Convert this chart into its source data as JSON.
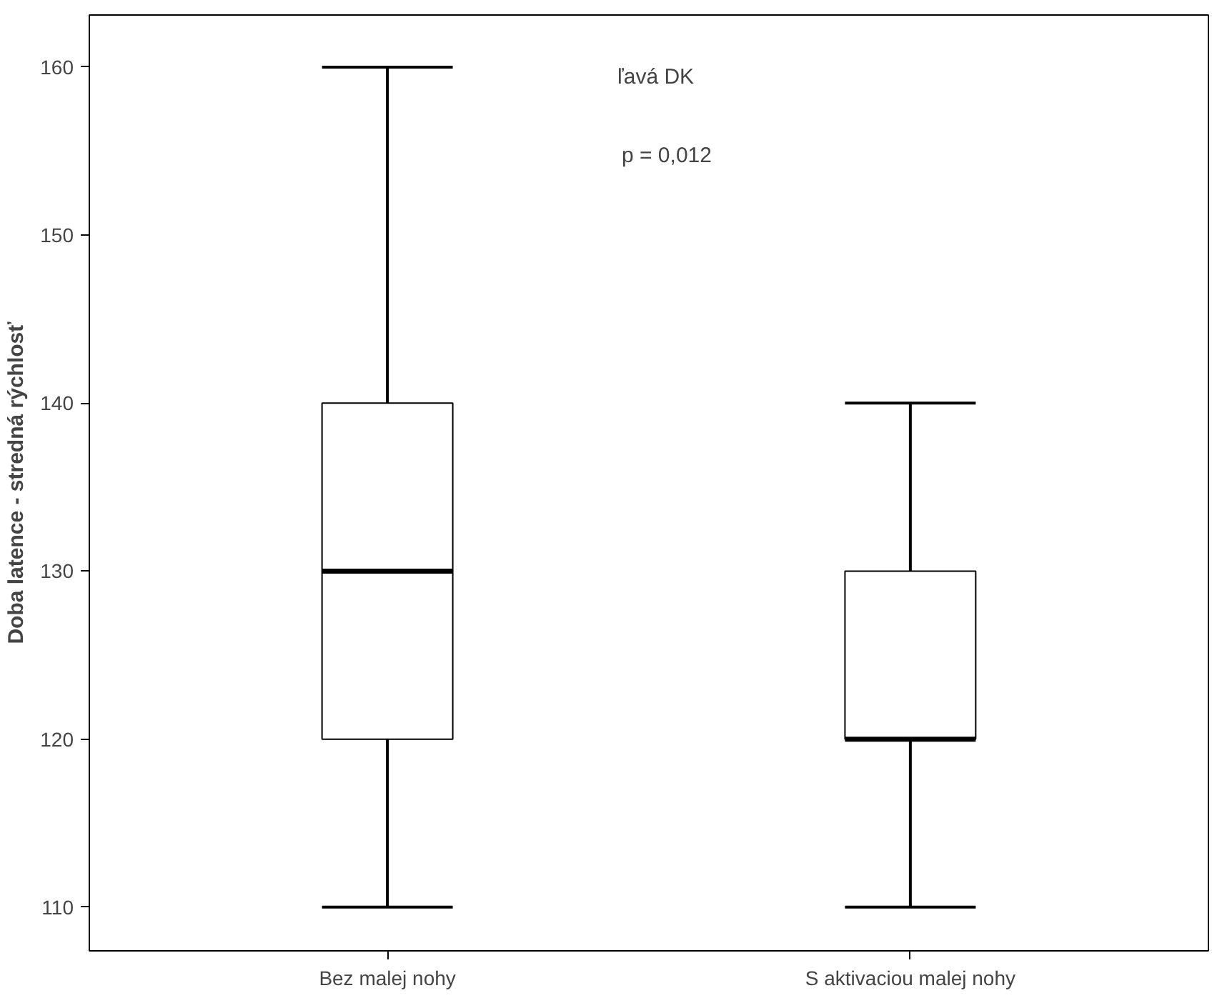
{
  "chart_data": {
    "type": "box",
    "ylabel": "Doba latence - stredná rýchlosť",
    "categories": [
      "Bez malej nohy",
      "S aktivaciou malej nohy"
    ],
    "boxes": [
      {
        "low": 110,
        "q1": 120,
        "median": 130,
        "q3": 140,
        "high": 160
      },
      {
        "low": 110,
        "q1": 120,
        "median": 120,
        "q3": 130,
        "high": 140
      }
    ],
    "ylim": [
      107.4,
      163.1
    ],
    "yticks": [
      110,
      120,
      130,
      140,
      150,
      160
    ],
    "annotations": [
      "ľavá DK",
      "p = 0,012"
    ],
    "grid": false
  }
}
